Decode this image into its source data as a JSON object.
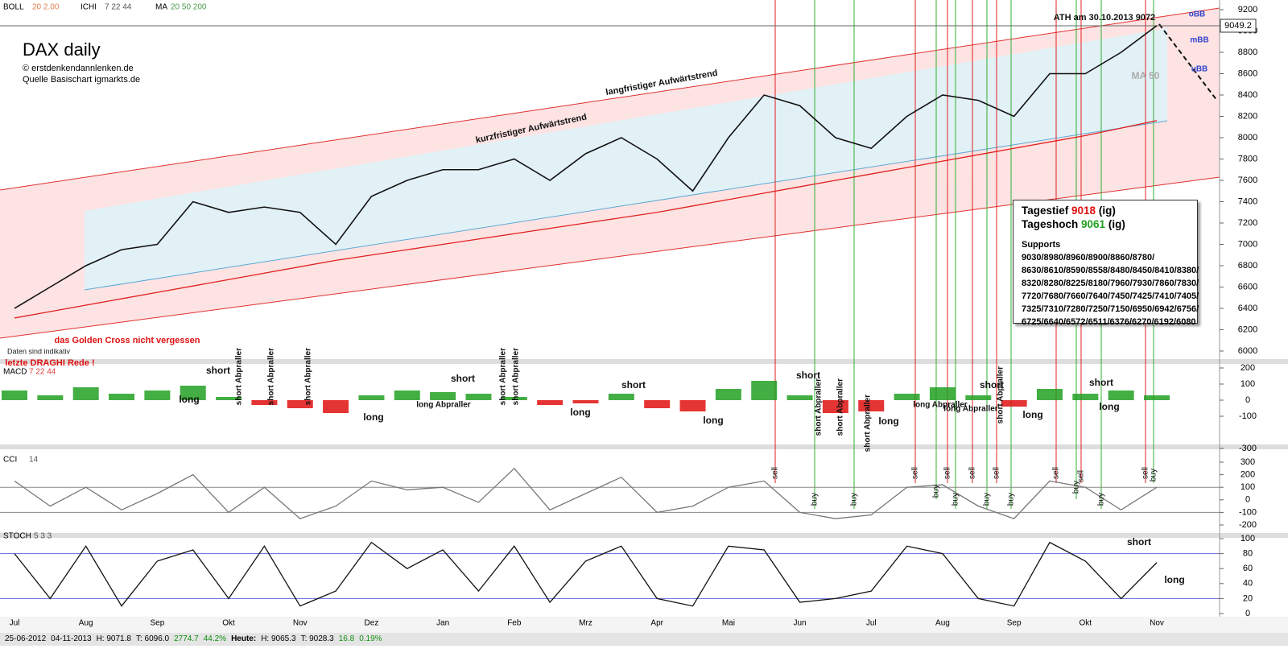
{
  "header": {
    "items": [
      {
        "label": "BOLL",
        "params": "20 2.00"
      },
      {
        "label": "ICHI",
        "params": "7 22 44"
      },
      {
        "label": "MA",
        "params": "20 50 200"
      }
    ]
  },
  "title": "DAX daily",
  "credits": [
    "© erstdenkendannlenken.de",
    "Quelle Basischart igmarkts.de"
  ],
  "info_box": {
    "low": {
      "label": "Tagestief",
      "value": 9018,
      "suffix": "(ig)"
    },
    "high": {
      "label": "Tageshoch",
      "value": 9061,
      "suffix": "(ig)"
    },
    "supports_title": "Supports",
    "supports": [
      "9030/8980/8960/8900/8860/8780/",
      "8630/8610/8590/8558/8480/8450/8410/8380/",
      "8320/8280/8225/8180/7960/7930/7860/7830/",
      "7720/7680/7660/7640/7450/7425/7410/7405/",
      "7325/7310/7280/7250/7150/6950/6942/6756/",
      "6725/6640/6572/6511/6376/6270/6192/6080"
    ]
  },
  "footer": [
    "25-06-2012",
    "04-11-2013",
    "H: 9071.8",
    "T: 6096.0",
    "2774.7",
    "44.2%",
    "Heute:",
    "H: 9065.3",
    "T: 9028.3",
    "16.8",
    "0.19%"
  ],
  "chart_data": [
    {
      "type": "line",
      "ylim": [
        6000,
        9200
      ],
      "yticks": [
        6000,
        6200,
        6400,
        6600,
        6800,
        7000,
        7200,
        7400,
        7600,
        7800,
        8000,
        8200,
        8400,
        8600,
        8800,
        9000,
        9200
      ],
      "last_price": 9049.2,
      "series": [
        {
          "name": "DAX",
          "color": "#111111",
          "values": [
            6400,
            6600,
            6800,
            6950,
            7000,
            7400,
            7300,
            7350,
            7300,
            7000,
            7450,
            7600,
            7700,
            7700,
            7800,
            7600,
            7850,
            8000,
            7800,
            7500,
            8000,
            8400,
            8300,
            8000,
            7900,
            8200,
            8400,
            8350,
            8200,
            8600,
            8600,
            8800,
            9050
          ]
        },
        {
          "name": "MA 200",
          "color": "#e02020",
          "values": [
            6310,
            6370,
            6430,
            6490,
            6550,
            6610,
            6670,
            6730,
            6790,
            6850,
            6900,
            6950,
            7000,
            7050,
            7100,
            7150,
            7200,
            7250,
            7300,
            7360,
            7420,
            7480,
            7540,
            7600,
            7660,
            7720,
            7780,
            7840,
            7900,
            7960,
            8020,
            8090,
            8160
          ]
        }
      ],
      "annotations": [
        "langfristiger Aufwärtstrend",
        "kurzfristiger Aufwärtstrend",
        "ATH am 30.10.2013 9072",
        "oBB",
        "mBB",
        "uBB",
        "MA 50",
        "das Golden Cross nicht vergessen",
        "Daten sind indikativ",
        "letzte DRAGHI Rede !",
        "short Abpraller",
        "short Abpraller",
        "short Abpraller",
        "short Abpraller",
        "short Abpraller",
        "short Abpraller",
        "short Abpraller",
        "short Abpraller",
        "short Abpraller"
      ]
    },
    {
      "type": "bar",
      "label": "MACD",
      "params": "7 22 44",
      "ylim": [
        -300,
        200
      ],
      "yticks": [
        200,
        100,
        0,
        -100,
        -300
      ],
      "series": [
        {
          "name": "MACD",
          "color": "#22a022",
          "negative_color": "#e01010",
          "values": [
            60,
            30,
            80,
            40,
            60,
            90,
            20,
            -30,
            -50,
            -80,
            30,
            60,
            50,
            40,
            20,
            -30,
            -20,
            40,
            -50,
            -70,
            70,
            120,
            30,
            -80,
            -70,
            40,
            80,
            30,
            -40,
            70,
            40,
            60,
            30
          ]
        }
      ],
      "annotations": [
        "short",
        "long",
        "short",
        "long",
        "long Abpraller",
        "long",
        "short",
        "long",
        "short",
        "long",
        "long Abpraller",
        "long Abpraller",
        "short",
        "long",
        "short",
        "long"
      ]
    },
    {
      "type": "line",
      "label": "CCI",
      "params": "14",
      "ylim": [
        -200,
        300
      ],
      "yticks": [
        300,
        200,
        100,
        0,
        -100,
        -200
      ],
      "levels": [
        100,
        -100
      ],
      "series": [
        {
          "name": "CCI",
          "color": "#777777",
          "values": [
            150,
            -50,
            100,
            -80,
            50,
            200,
            -100,
            100,
            -150,
            -50,
            150,
            80,
            100,
            -20,
            250,
            -80,
            50,
            180,
            -100,
            -50,
            100,
            150,
            -100,
            -150,
            -120,
            100,
            120,
            -50,
            -150,
            150,
            100,
            -80,
            100
          ]
        }
      ],
      "annotations": [
        "sell",
        "buy",
        "buy",
        "sell",
        "buy",
        "sell",
        "buy",
        "sell",
        "buy",
        "sell",
        "buy",
        "sell",
        "buy",
        "sell",
        "buy",
        "sell",
        "buy"
      ]
    },
    {
      "type": "line",
      "label": "STOCH",
      "params": "5 3 3",
      "ylim": [
        0,
        100
      ],
      "yticks": [
        100,
        80,
        60,
        40,
        20,
        0
      ],
      "levels": [
        80,
        20
      ],
      "categories": [
        "Jul",
        null,
        "Aug",
        null,
        "Sep",
        null,
        "Okt",
        null,
        "Nov",
        null,
        "Dez",
        null,
        "Jan",
        null,
        "Feb",
        null,
        "Mrz",
        null,
        "Apr",
        null,
        "Mai",
        null,
        "Jun",
        null,
        "Jul",
        null,
        "Aug",
        null,
        "Sep",
        null,
        "Okt",
        null,
        "Nov"
      ],
      "series": [
        {
          "name": "STOCH",
          "color": "#111111",
          "values": [
            80,
            20,
            90,
            10,
            70,
            85,
            20,
            90,
            10,
            30,
            95,
            60,
            85,
            30,
            90,
            15,
            70,
            90,
            20,
            10,
            90,
            85,
            15,
            20,
            30,
            90,
            80,
            20,
            10,
            95,
            70,
            20,
            68
          ]
        }
      ],
      "annotations": [
        "short",
        "long"
      ]
    }
  ]
}
